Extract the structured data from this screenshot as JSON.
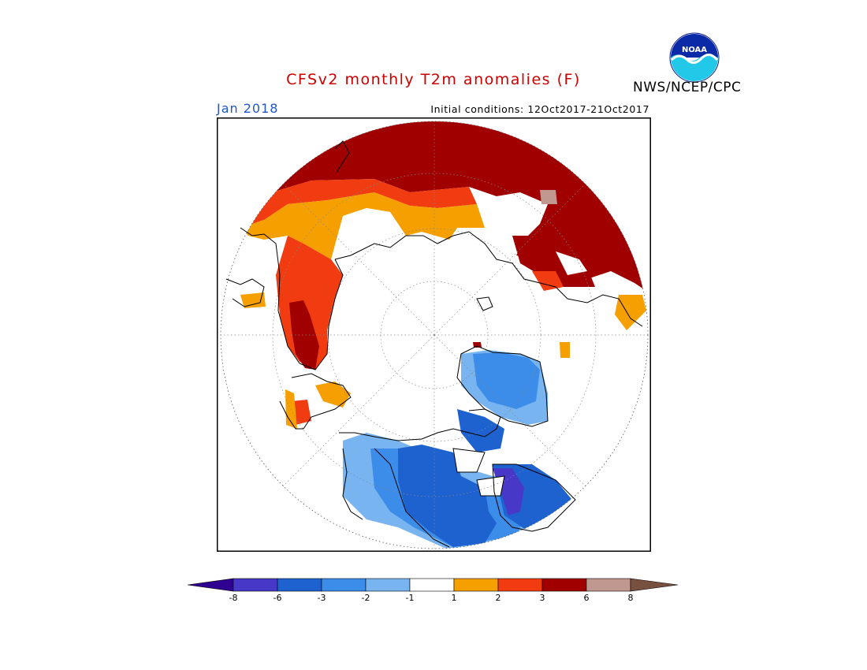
{
  "title": "CFSv2 monthly T2m anomalies (F)",
  "agency": "NWS/NCEP/CPC",
  "logo_text": "NOAA",
  "month": "Jan 2018",
  "initial_conditions": "Initial conditions: 12Oct2017-21Oct2017",
  "colors": {
    "title": "#cc0000",
    "month": "#2255cc",
    "bin_colors": [
      "#300090",
      "#4838c8",
      "#1e62d0",
      "#3c8cea",
      "#78b4f0",
      "#ffffff",
      "#f5a000",
      "#f03c10",
      "#a00000",
      "#c09890",
      "#785040"
    ]
  },
  "colorbar_ticks": [
    "-8",
    "-6",
    "-3",
    "-2",
    "-1",
    "1",
    "2",
    "3",
    "6",
    "8"
  ]
}
